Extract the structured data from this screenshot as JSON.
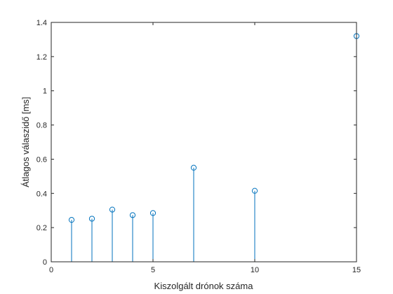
{
  "chart_data": {
    "type": "stem",
    "title": "",
    "xlabel": "Kiszolgált drónok száma",
    "ylabel": "Átlagos válaszidő [ms]",
    "xlim": [
      0,
      15
    ],
    "ylim": [
      0,
      1.4
    ],
    "xticks": [
      0,
      5,
      10,
      15
    ],
    "xtick_labels": [
      "0",
      "5",
      "10",
      "15"
    ],
    "yticks": [
      0,
      0.2,
      0.4,
      0.6,
      0.8,
      1,
      1.2,
      1.4
    ],
    "ytick_labels": [
      "0",
      "0.2",
      "0.4",
      "0.6",
      "0.8",
      "1",
      "1.2",
      "1.4"
    ],
    "grid": false,
    "series": [
      {
        "x": [
          1,
          2,
          3,
          4,
          5,
          7,
          10,
          15
        ],
        "values": [
          0.245,
          0.252,
          0.305,
          0.273,
          0.285,
          0.55,
          0.415,
          1.32
        ]
      }
    ],
    "colors": {
      "series": "#0072BD",
      "axes": "#262626"
    }
  }
}
